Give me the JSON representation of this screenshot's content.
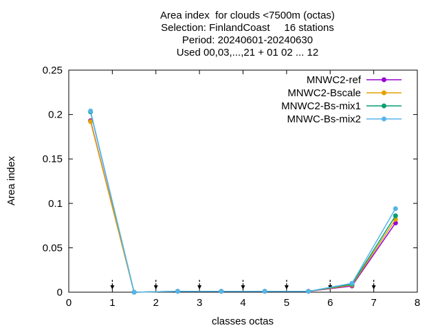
{
  "chart_data": {
    "type": "line",
    "title_lines": [
      "Area index  for clouds <7500m (octas)",
      "Selection: FinlandCoast     16 stations",
      "Period: 20240601-20240630",
      "Used 00,03,...,21 + 01 02 ... 12"
    ],
    "xlabel": "classes octas",
    "ylabel": "Area index",
    "xlim": [
      0,
      8
    ],
    "ylim": [
      0,
      0.25
    ],
    "x_ticks": [
      "0",
      "1",
      "2",
      "3",
      "4",
      "5",
      "6",
      "7",
      "8"
    ],
    "y_ticks": [
      "0",
      "0.05",
      "0.1",
      "0.15",
      "0.2",
      "0.25"
    ],
    "grid": false,
    "legend_position": "top-right",
    "marker_x": [
      1,
      2,
      3,
      4,
      5,
      6,
      7
    ],
    "x": [
      0.5,
      1.5,
      2.5,
      3.5,
      4.5,
      5.5,
      6.5,
      7.5
    ],
    "series": [
      {
        "name": "MNWC2-ref",
        "color": "#9400d3",
        "values": [
          0.193,
          0.0,
          0.001,
          0.001,
          0.001,
          0.001,
          0.007,
          0.078
        ]
      },
      {
        "name": "MNWC2-Bscale",
        "color": "#e69f00",
        "values": [
          0.192,
          0.0,
          0.001,
          0.001,
          0.001,
          0.001,
          0.008,
          0.082
        ]
      },
      {
        "name": "MNWC2-Bs-mix1",
        "color": "#009e73",
        "values": [
          0.203,
          0.0,
          0.001,
          0.001,
          0.001,
          0.001,
          0.009,
          0.086
        ]
      },
      {
        "name": "MNWC-Bs-mix2",
        "color": "#56b4e9",
        "values": [
          0.204,
          0.0,
          0.001,
          0.001,
          0.001,
          0.001,
          0.01,
          0.094
        ]
      }
    ]
  }
}
